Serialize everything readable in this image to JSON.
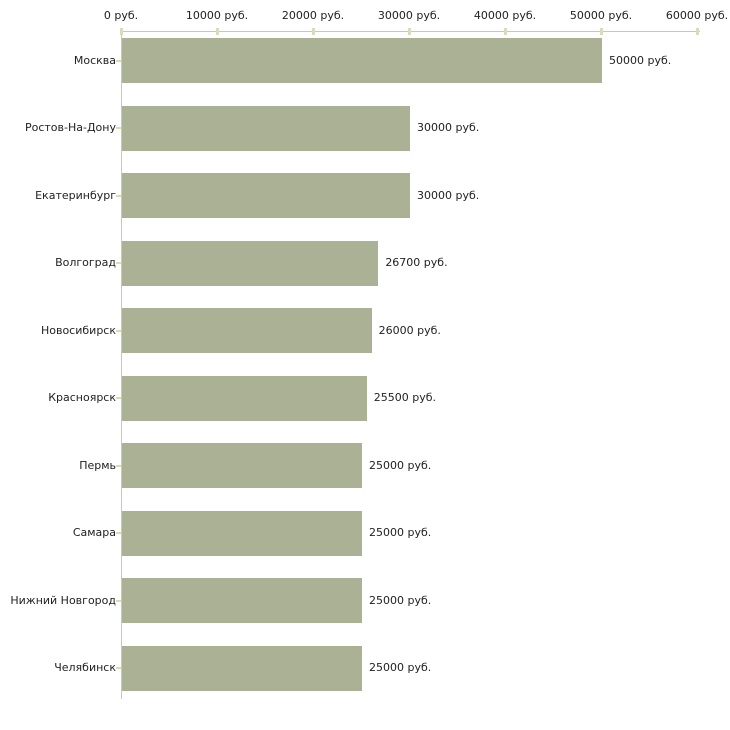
{
  "chart_data": {
    "type": "bar",
    "orientation": "horizontal",
    "title": "",
    "xlabel": "",
    "ylabel": "",
    "unit": "руб.",
    "xlim": [
      0,
      60000
    ],
    "grid": false,
    "legend": false,
    "categories": [
      "Москва",
      "Ростов-На-Дону",
      "Екатеринбург",
      "Волгоград",
      "Новосибирск",
      "Красноярск",
      "Пермь",
      "Самара",
      "Нижний Новгород",
      "Челябинск"
    ],
    "values": [
      50000,
      30000,
      30000,
      26700,
      26000,
      25500,
      25000,
      25000,
      25000,
      25000
    ],
    "value_labels": [
      "50000 руб.",
      "30000 руб.",
      "30000 руб.",
      "26700 руб.",
      "26000 руб.",
      "25500 руб.",
      "25000 руб.",
      "25000 руб.",
      "25000 руб.",
      "25000 руб."
    ],
    "x_tick_values": [
      0,
      10000,
      20000,
      30000,
      40000,
      50000,
      60000
    ],
    "x_tick_labels": [
      "0 руб.",
      "10000 руб.",
      "20000 руб.",
      "30000 руб.",
      "40000 руб.",
      "50000 руб.",
      "60000 руб."
    ],
    "colors": {
      "bar": "#abb194",
      "axis_line": "#c6c6c6",
      "tick_mark": "#d9dbba",
      "text": "#222222",
      "background": "#ffffff"
    }
  }
}
